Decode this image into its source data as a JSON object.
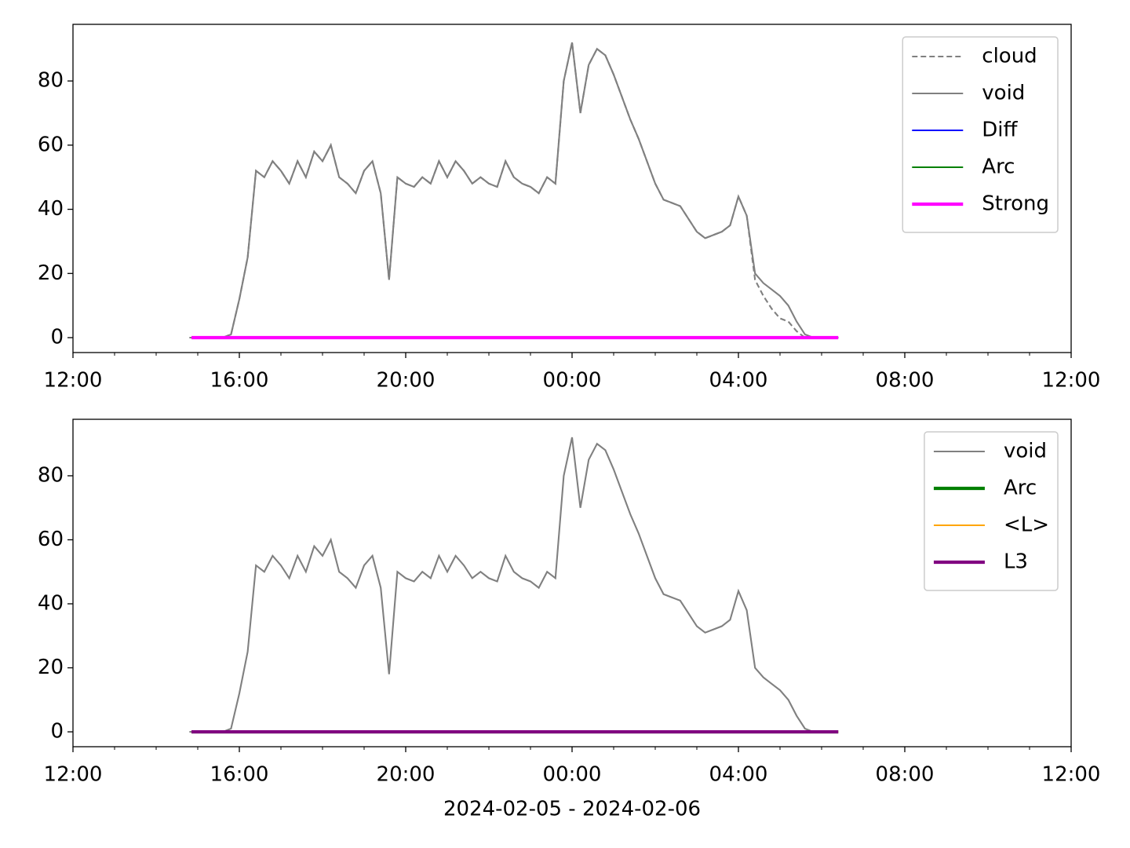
{
  "chart_data": [
    {
      "type": "line",
      "x": [
        14.8,
        15,
        15.2,
        15.4,
        15.6,
        15.8,
        16,
        16.2,
        16.4,
        16.6,
        16.8,
        17,
        17.2,
        17.4,
        17.6,
        17.8,
        18,
        18.2,
        18.4,
        18.6,
        18.8,
        19,
        19.2,
        19.4,
        19.6,
        19.8,
        20,
        20.2,
        20.4,
        20.6,
        20.8,
        21,
        21.2,
        21.4,
        21.6,
        21.8,
        22,
        22.2,
        22.4,
        22.6,
        22.8,
        23,
        23.2,
        23.4,
        23.6,
        23.8,
        24,
        24.2,
        24.4,
        24.6,
        24.8,
        25,
        25.2,
        25.4,
        25.6,
        25.8,
        26,
        26.2,
        26.4,
        26.6,
        26.8,
        27,
        27.2,
        27.4,
        27.6,
        27.8,
        28,
        28.2,
        28.4,
        28.6,
        28.8,
        29,
        29.2,
        29.4,
        29.6,
        29.8,
        30,
        30.2,
        30.4
      ],
      "series": [
        {
          "name": "cloud",
          "color": "#808080",
          "linestyle": "--",
          "linewidth": 1,
          "values": [
            0,
            0,
            0,
            0,
            0,
            1,
            12,
            25,
            52,
            50,
            55,
            52,
            48,
            55,
            50,
            58,
            55,
            60,
            50,
            48,
            45,
            52,
            55,
            45,
            18,
            50,
            48,
            47,
            50,
            48,
            55,
            50,
            55,
            52,
            48,
            50,
            48,
            47,
            55,
            50,
            48,
            47,
            45,
            50,
            48,
            80,
            92,
            70,
            85,
            90,
            88,
            82,
            75,
            68,
            62,
            55,
            48,
            43,
            42,
            41,
            37,
            33,
            31,
            32,
            33,
            35,
            44,
            38,
            18,
            13,
            9,
            6,
            5,
            2,
            0,
            0,
            0,
            0,
            0
          ]
        },
        {
          "name": "void",
          "color": "#808080",
          "linestyle": "-",
          "linewidth": 1,
          "values": [
            0,
            0,
            0,
            0,
            0,
            1,
            12,
            25,
            52,
            50,
            55,
            52,
            48,
            55,
            50,
            58,
            55,
            60,
            50,
            48,
            45,
            52,
            55,
            45,
            18,
            50,
            48,
            47,
            50,
            48,
            55,
            50,
            55,
            52,
            48,
            50,
            48,
            47,
            55,
            50,
            48,
            47,
            45,
            50,
            48,
            80,
            92,
            70,
            85,
            90,
            88,
            82,
            75,
            68,
            62,
            55,
            48,
            43,
            42,
            41,
            37,
            33,
            31,
            32,
            33,
            35,
            44,
            38,
            20,
            17,
            15,
            13,
            10,
            5,
            1,
            0,
            0,
            0,
            0
          ]
        },
        {
          "name": "Diff",
          "color": "#0000ff",
          "linestyle": "-",
          "linewidth": 1,
          "x": [
            14.85,
            30.4
          ],
          "values": [
            0,
            0
          ]
        },
        {
          "name": "Arc",
          "color": "#008000",
          "linestyle": "-",
          "linewidth": 1,
          "x": [
            14.85,
            30.4
          ],
          "values": [
            0,
            0
          ]
        },
        {
          "name": "Strong",
          "color": "#ff00ff",
          "linestyle": "-",
          "linewidth": 2,
          "x": [
            14.85,
            30.4
          ],
          "values": [
            0,
            0
          ]
        }
      ],
      "xlim": [
        12,
        36
      ],
      "xticks": [
        {
          "value": 12,
          "label": "12:00"
        },
        {
          "value": 16,
          "label": "16:00"
        },
        {
          "value": 20,
          "label": "20:00"
        },
        {
          "value": 24,
          "label": "00:00"
        },
        {
          "value": 28,
          "label": "04:00"
        },
        {
          "value": 32,
          "label": "08:00"
        },
        {
          "value": 36,
          "label": "12:00"
        }
      ],
      "xminorticks": [
        13,
        14,
        15,
        17,
        18,
        19,
        21,
        22,
        23,
        25,
        26,
        27,
        29,
        30,
        31,
        33,
        34,
        35
      ],
      "ylim": [
        -4.65,
        97.65
      ],
      "yticks": [
        0,
        20,
        40,
        60,
        80
      ],
      "legend": "upper right"
    },
    {
      "type": "line",
      "x": [
        14.8,
        15,
        15.2,
        15.4,
        15.6,
        15.8,
        16,
        16.2,
        16.4,
        16.6,
        16.8,
        17,
        17.2,
        17.4,
        17.6,
        17.8,
        18,
        18.2,
        18.4,
        18.6,
        18.8,
        19,
        19.2,
        19.4,
        19.6,
        19.8,
        20,
        20.2,
        20.4,
        20.6,
        20.8,
        21,
        21.2,
        21.4,
        21.6,
        21.8,
        22,
        22.2,
        22.4,
        22.6,
        22.8,
        23,
        23.2,
        23.4,
        23.6,
        23.8,
        24,
        24.2,
        24.4,
        24.6,
        24.8,
        25,
        25.2,
        25.4,
        25.6,
        25.8,
        26,
        26.2,
        26.4,
        26.6,
        26.8,
        27,
        27.2,
        27.4,
        27.6,
        27.8,
        28,
        28.2,
        28.4,
        28.6,
        28.8,
        29,
        29.2,
        29.4,
        29.6,
        29.8,
        30,
        30.2,
        30.4
      ],
      "series": [
        {
          "name": "void",
          "color": "#808080",
          "linestyle": "-",
          "linewidth": 1,
          "values": [
            0,
            0,
            0,
            0,
            0,
            1,
            12,
            25,
            52,
            50,
            55,
            52,
            48,
            55,
            50,
            58,
            55,
            60,
            50,
            48,
            45,
            52,
            55,
            45,
            18,
            50,
            48,
            47,
            50,
            48,
            55,
            50,
            55,
            52,
            48,
            50,
            48,
            47,
            55,
            50,
            48,
            47,
            45,
            50,
            48,
            80,
            92,
            70,
            85,
            90,
            88,
            82,
            75,
            68,
            62,
            55,
            48,
            43,
            42,
            41,
            37,
            33,
            31,
            32,
            33,
            35,
            44,
            38,
            20,
            17,
            15,
            13,
            10,
            5,
            1,
            0,
            0,
            0,
            0
          ]
        },
        {
          "name": "Arc",
          "color": "#008000",
          "linestyle": "-",
          "linewidth": 2,
          "x": [
            14.85,
            30.4
          ],
          "values": [
            0,
            0
          ]
        },
        {
          "name": "<L>",
          "color": "#ffa500",
          "linestyle": "-",
          "linewidth": 1,
          "x": [
            14.85,
            30.4
          ],
          "values": [
            0,
            0
          ]
        },
        {
          "name": "L3",
          "color": "#800080",
          "linestyle": "-",
          "linewidth": 2,
          "x": [
            14.85,
            30.4
          ],
          "values": [
            0,
            0
          ]
        }
      ],
      "xlim": [
        12,
        36
      ],
      "xticks": [
        {
          "value": 12,
          "label": "12:00"
        },
        {
          "value": 16,
          "label": "16:00"
        },
        {
          "value": 20,
          "label": "20:00"
        },
        {
          "value": 24,
          "label": "00:00"
        },
        {
          "value": 28,
          "label": "04:00"
        },
        {
          "value": 32,
          "label": "08:00"
        },
        {
          "value": 36,
          "label": "12:00"
        }
      ],
      "xminorticks": [
        13,
        14,
        15,
        17,
        18,
        19,
        21,
        22,
        23,
        25,
        26,
        27,
        29,
        30,
        31,
        33,
        34,
        35
      ],
      "ylim": [
        -4.65,
        97.65
      ],
      "yticks": [
        0,
        20,
        40,
        60,
        80
      ],
      "xlabel": "2024-02-05 - 2024-02-06",
      "legend": "upper right"
    }
  ]
}
